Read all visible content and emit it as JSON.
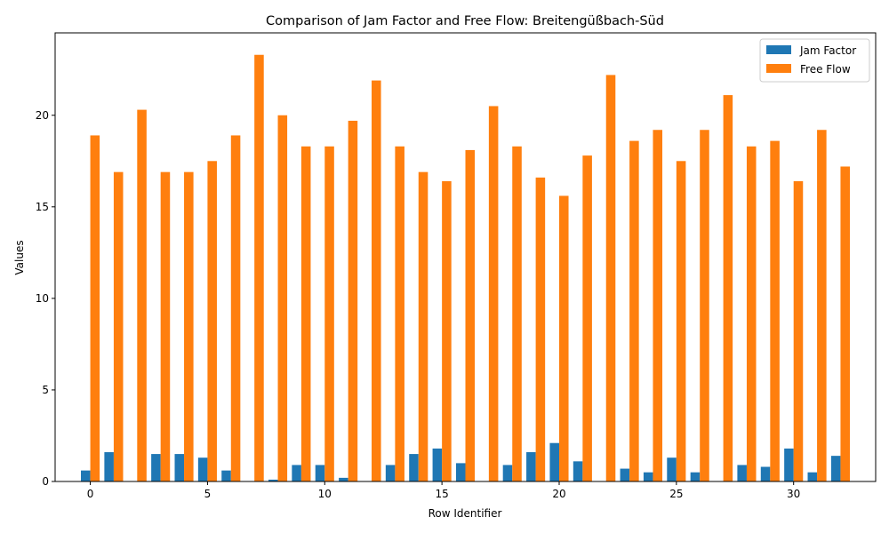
{
  "chart_data": {
    "type": "bar",
    "title": "Comparison of Jam Factor and Free Flow: Breitengüßbach-Süd",
    "xlabel": "Row Identifier",
    "ylabel": "Values",
    "x": [
      0,
      1,
      2,
      3,
      4,
      5,
      6,
      7,
      8,
      9,
      10,
      11,
      12,
      13,
      14,
      15,
      16,
      17,
      18,
      19,
      20,
      21,
      22,
      23,
      24,
      25,
      26,
      27,
      28,
      29,
      30,
      31,
      32
    ],
    "xticks": [
      0,
      5,
      10,
      15,
      20,
      25,
      30
    ],
    "yticks": [
      0,
      5,
      10,
      15,
      20
    ],
    "ylim": [
      0,
      24.5
    ],
    "xlim": [
      -1.5,
      33.5
    ],
    "legend_position": "top-right",
    "grid": false,
    "series": [
      {
        "name": "Jam Factor",
        "color": "#1f77b4",
        "values": [
          0.6,
          1.6,
          0.0,
          1.5,
          1.5,
          1.3,
          0.6,
          0.0,
          0.1,
          0.9,
          0.9,
          0.2,
          0.0,
          0.9,
          1.5,
          1.8,
          1.0,
          0.0,
          0.9,
          1.6,
          2.1,
          1.1,
          0.0,
          0.7,
          0.5,
          1.3,
          0.5,
          0.0,
          0.9,
          0.8,
          1.8,
          0.5,
          1.4
        ]
      },
      {
        "name": "Free Flow",
        "color": "#ff7f0e",
        "values": [
          18.9,
          16.9,
          20.3,
          16.9,
          16.9,
          17.5,
          18.9,
          23.3,
          20.0,
          18.3,
          18.3,
          19.7,
          21.9,
          18.3,
          16.9,
          16.4,
          18.1,
          20.5,
          18.3,
          16.6,
          15.6,
          17.8,
          22.2,
          18.6,
          19.2,
          17.5,
          19.2,
          21.1,
          18.3,
          18.6,
          16.4,
          19.2,
          17.2
        ]
      }
    ]
  }
}
